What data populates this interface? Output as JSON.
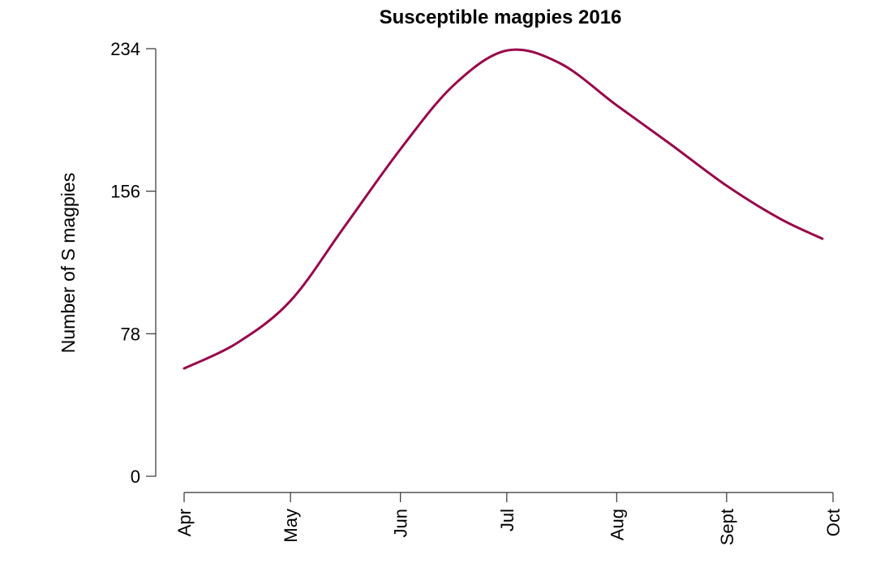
{
  "chart_data": {
    "type": "line",
    "title": "Susceptible magpies 2016",
    "xlabel": "",
    "ylabel": "Number of S magpies",
    "x_ticks": [
      "Apr",
      "May",
      "Jun",
      "Jul",
      "Aug",
      "Sept",
      "Oct"
    ],
    "y_ticks": [
      0,
      78,
      156,
      234
    ],
    "ylim": [
      0,
      234
    ],
    "grid": false,
    "legend": "none",
    "colors": {
      "series": "#99064a"
    },
    "series": [
      {
        "x": [
          "Apr 1",
          "Apr 16",
          "May 1",
          "May 16",
          "Jun 1",
          "Jun 16",
          "Jul 1",
          "Jul 16",
          "Aug 1",
          "Aug 16",
          "Sept 1",
          "Sept 16",
          "Sept 28"
        ],
        "values": [
          59,
          73,
          96,
          136,
          179,
          214,
          233,
          226,
          203,
          182,
          159,
          141,
          130
        ]
      }
    ]
  }
}
